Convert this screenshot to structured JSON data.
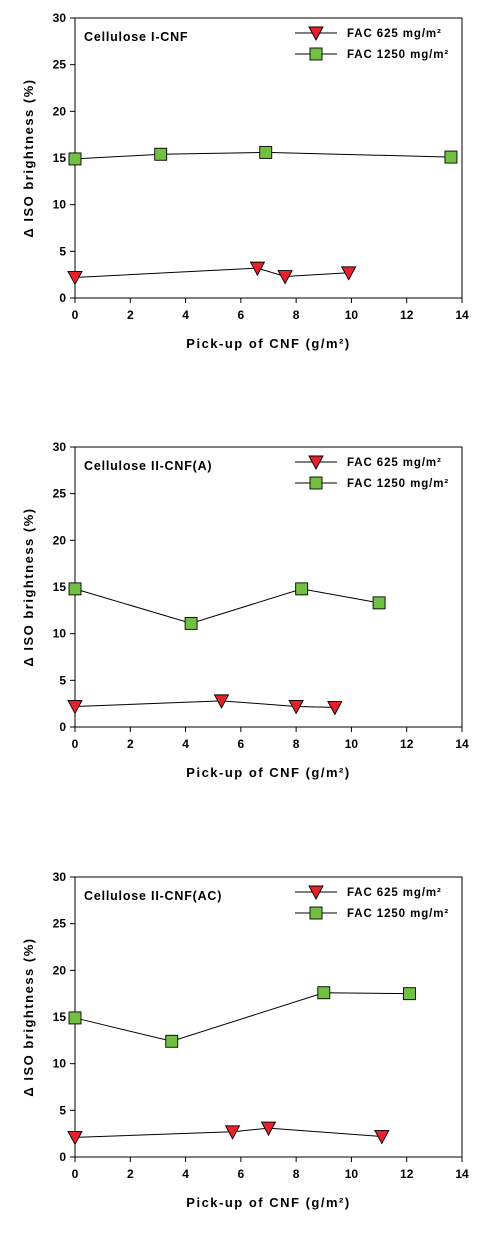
{
  "chart_data": [
    {
      "type": "line",
      "panel_label": "Cellulose I-CNF",
      "xlabel": "Pick-up of CNF (g/m²)",
      "ylabel": "Δ ISO brightness (%)",
      "xlim": [
        0,
        14
      ],
      "ylim": [
        0,
        30
      ],
      "xticks": [
        "0",
        "2",
        "4",
        "6",
        "8",
        "10",
        "12",
        "14"
      ],
      "yticks": [
        "0",
        "5",
        "10",
        "15",
        "20",
        "25",
        "30"
      ],
      "legend_position": "top-right",
      "series": [
        {
          "name": "FAC 625 mg/m²",
          "marker": "triangle-down",
          "color": "#e8202a",
          "x": [
            0,
            6.6,
            7.6,
            9.9
          ],
          "y": [
            2.2,
            3.2,
            2.3,
            2.7
          ]
        },
        {
          "name": "FAC 1250 mg/m²",
          "marker": "square",
          "color": "#72c042",
          "x": [
            0,
            3.1,
            6.9,
            13.6
          ],
          "y": [
            14.9,
            15.4,
            15.6,
            15.1
          ]
        }
      ]
    },
    {
      "type": "line",
      "panel_label": "Cellulose II-CNF(A)",
      "xlabel": "Pick-up of CNF (g/m²)",
      "ylabel": "Δ ISO brightness (%)",
      "xlim": [
        0,
        14
      ],
      "ylim": [
        0,
        30
      ],
      "xticks": [
        "0",
        "2",
        "4",
        "6",
        "8",
        "10",
        "12",
        "14"
      ],
      "yticks": [
        "0",
        "5",
        "10",
        "15",
        "20",
        "25",
        "30"
      ],
      "legend_position": "top-right",
      "series": [
        {
          "name": "FAC 625 mg/m²",
          "marker": "triangle-down",
          "color": "#e8202a",
          "x": [
            0,
            5.3,
            8.0,
            9.4
          ],
          "y": [
            2.2,
            2.8,
            2.2,
            2.1
          ]
        },
        {
          "name": "FAC 1250 mg/m²",
          "marker": "square",
          "color": "#72c042",
          "x": [
            0,
            4.2,
            8.2,
            11.0
          ],
          "y": [
            14.8,
            11.1,
            14.8,
            13.3
          ]
        }
      ]
    },
    {
      "type": "line",
      "panel_label": "Cellulose II-CNF(AC)",
      "xlabel": "Pick-up of CNF (g/m²)",
      "ylabel": "Δ ISO brightness (%)",
      "xlim": [
        0,
        14
      ],
      "ylim": [
        0,
        30
      ],
      "xticks": [
        "0",
        "2",
        "4",
        "6",
        "8",
        "10",
        "12",
        "14"
      ],
      "yticks": [
        "0",
        "5",
        "10",
        "15",
        "20",
        "25",
        "30"
      ],
      "legend_position": "top-right",
      "series": [
        {
          "name": "FAC 625 mg/m²",
          "marker": "triangle-down",
          "color": "#e8202a",
          "x": [
            0,
            5.7,
            7.0,
            11.1
          ],
          "y": [
            2.1,
            2.7,
            3.1,
            2.2
          ]
        },
        {
          "name": "FAC 1250 mg/m²",
          "marker": "square",
          "color": "#72c042",
          "x": [
            0,
            3.5,
            9.0,
            12.1
          ],
          "y": [
            14.9,
            12.4,
            17.6,
            17.5
          ]
        }
      ]
    }
  ]
}
